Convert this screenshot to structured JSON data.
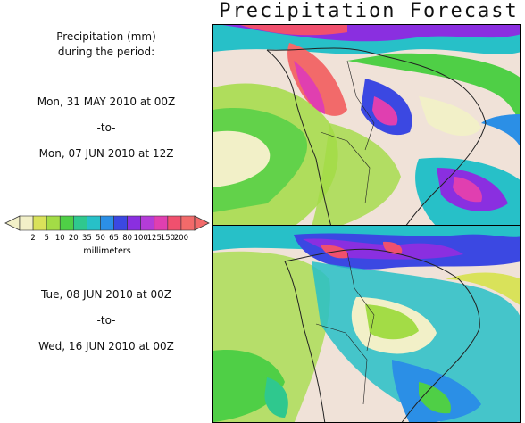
{
  "title": "Precipitation Forecast",
  "intro": {
    "line1": "Precipitation (mm)",
    "line2": "during the period:"
  },
  "period1": {
    "start": "Mon, 31 MAY 2010 at 00Z",
    "sep": "-to-",
    "end": "Mon, 07 JUN 2010 at 12Z"
  },
  "period2": {
    "start": "Tue, 08 JUN 2010 at 00Z",
    "sep": "-to-",
    "end": "Wed, 16 JUN 2010 at 00Z"
  },
  "legend": {
    "unit": "millimeters",
    "ticks": [
      "2",
      "5",
      "10",
      "20",
      "35",
      "50",
      "65",
      "80",
      "100",
      "125",
      "150",
      "200"
    ],
    "colors": [
      "#f2f0c8",
      "#d9e25a",
      "#a3dc46",
      "#4fcf46",
      "#2fc88e",
      "#27c0c8",
      "#2b8fe6",
      "#3b48e2",
      "#8a2fe0",
      "#b43cd8",
      "#e03fb0",
      "#f0506e",
      "#f26a6a"
    ]
  },
  "map_colors": {
    "land": "#f0e2d8",
    "ocean": "#f0e2d8",
    "coast": "#222222"
  }
}
